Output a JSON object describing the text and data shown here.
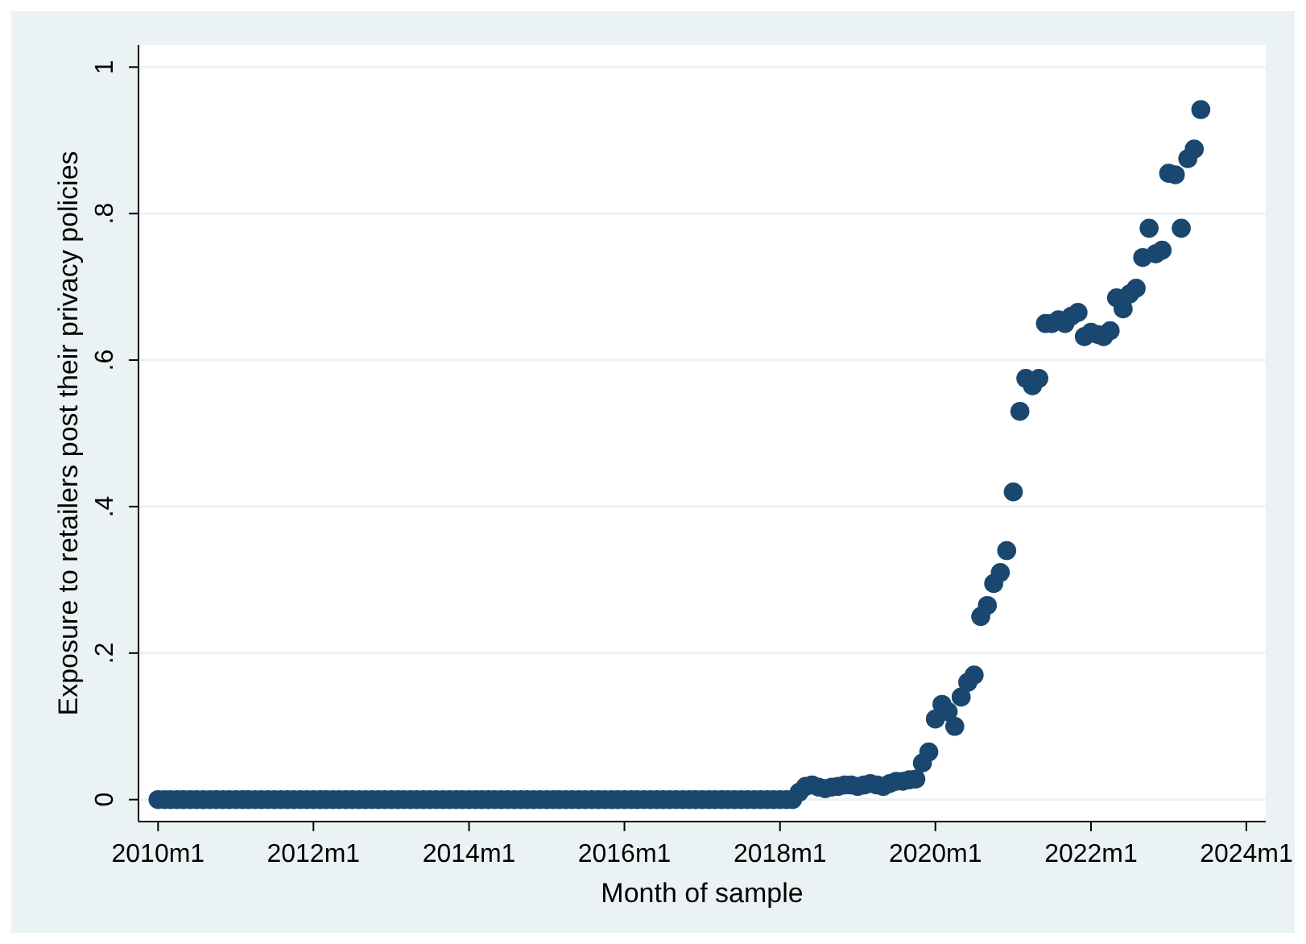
{
  "chart_data": {
    "type": "scatter",
    "xlabel": "Month of sample",
    "ylabel": "Exposure to retailers post their privacy policies",
    "x": [
      "2010-01",
      "2010-02",
      "2010-03",
      "2010-04",
      "2010-05",
      "2010-06",
      "2010-07",
      "2010-08",
      "2010-09",
      "2010-10",
      "2010-11",
      "2010-12",
      "2011-01",
      "2011-02",
      "2011-03",
      "2011-04",
      "2011-05",
      "2011-06",
      "2011-07",
      "2011-08",
      "2011-09",
      "2011-10",
      "2011-11",
      "2011-12",
      "2012-01",
      "2012-02",
      "2012-03",
      "2012-04",
      "2012-05",
      "2012-06",
      "2012-07",
      "2012-08",
      "2012-09",
      "2012-10",
      "2012-11",
      "2012-12",
      "2013-01",
      "2013-02",
      "2013-03",
      "2013-04",
      "2013-05",
      "2013-06",
      "2013-07",
      "2013-08",
      "2013-09",
      "2013-10",
      "2013-11",
      "2013-12",
      "2014-01",
      "2014-02",
      "2014-03",
      "2014-04",
      "2014-05",
      "2014-06",
      "2014-07",
      "2014-08",
      "2014-09",
      "2014-10",
      "2014-11",
      "2014-12",
      "2015-01",
      "2015-02",
      "2015-03",
      "2015-04",
      "2015-05",
      "2015-06",
      "2015-07",
      "2015-08",
      "2015-09",
      "2015-10",
      "2015-11",
      "2015-12",
      "2016-01",
      "2016-02",
      "2016-03",
      "2016-04",
      "2016-05",
      "2016-06",
      "2016-07",
      "2016-08",
      "2016-09",
      "2016-10",
      "2016-11",
      "2016-12",
      "2017-01",
      "2017-02",
      "2017-03",
      "2017-04",
      "2017-05",
      "2017-06",
      "2017-07",
      "2017-08",
      "2017-09",
      "2017-10",
      "2017-11",
      "2017-12",
      "2018-01",
      "2018-02",
      "2018-03",
      "2018-04",
      "2018-05",
      "2018-06",
      "2018-07",
      "2018-08",
      "2018-09",
      "2018-10",
      "2018-11",
      "2018-12",
      "2019-01",
      "2019-02",
      "2019-03",
      "2019-04",
      "2019-05",
      "2019-06",
      "2019-07",
      "2019-08",
      "2019-09",
      "2019-10",
      "2019-11",
      "2019-12",
      "2020-01",
      "2020-02",
      "2020-03",
      "2020-04",
      "2020-05",
      "2020-06",
      "2020-07",
      "2020-08",
      "2020-09",
      "2020-10",
      "2020-11",
      "2020-12",
      "2021-01",
      "2021-02",
      "2021-03",
      "2021-04",
      "2021-05",
      "2021-06",
      "2021-07",
      "2021-08",
      "2021-09",
      "2021-10",
      "2021-11",
      "2021-12",
      "2022-01",
      "2022-02",
      "2022-03",
      "2022-04",
      "2022-05",
      "2022-06",
      "2022-07",
      "2022-08",
      "2022-09",
      "2022-10",
      "2022-11",
      "2022-12",
      "2023-01",
      "2023-02",
      "2023-03",
      "2023-04",
      "2023-05",
      "2023-06"
    ],
    "series": [
      {
        "color": "#1a476f",
        "values": [
          0,
          0,
          0,
          0,
          0,
          0,
          0,
          0,
          0,
          0,
          0,
          0,
          0,
          0,
          0,
          0,
          0,
          0,
          0,
          0,
          0,
          0,
          0,
          0,
          0,
          0,
          0,
          0,
          0,
          0,
          0,
          0,
          0,
          0,
          0,
          0,
          0,
          0,
          0,
          0,
          0,
          0,
          0,
          0,
          0,
          0,
          0,
          0,
          0,
          0,
          0,
          0,
          0,
          0,
          0,
          0,
          0,
          0,
          0,
          0,
          0,
          0,
          0,
          0,
          0,
          0,
          0,
          0,
          0,
          0,
          0,
          0,
          0,
          0,
          0,
          0,
          0,
          0,
          0,
          0,
          0,
          0,
          0,
          0,
          0,
          0,
          0,
          0,
          0,
          0,
          0,
          0,
          0,
          0,
          0,
          0,
          0,
          0,
          0,
          0.01,
          0.018,
          0.02,
          0.017,
          0.015,
          0.017,
          0.018,
          0.02,
          0.02,
          0.018,
          0.02,
          0.022,
          0.02,
          0.018,
          0.022,
          0.025,
          0.025,
          0.027,
          0.028,
          0.05,
          0.065,
          0.11,
          0.13,
          0.12,
          0.1,
          0.14,
          0.16,
          0.17,
          0.25,
          0.265,
          0.295,
          0.31,
          0.34,
          0.42,
          0.53,
          0.575,
          0.565,
          0.575,
          0.65,
          0.65,
          0.655,
          0.65,
          0.66,
          0.665,
          0.632,
          0.638,
          0.635,
          0.632,
          0.64,
          0.685,
          0.67,
          0.69,
          0.698,
          0.74,
          0.78,
          0.745,
          0.75,
          0.855,
          0.853,
          0.78,
          0.875,
          0.888,
          0.942
        ]
      }
    ],
    "xlim": [
      "2009-10",
      "2024-04"
    ],
    "xticks": [
      {
        "value": "2010-01",
        "label": "2010m1"
      },
      {
        "value": "2012-01",
        "label": "2012m1"
      },
      {
        "value": "2014-01",
        "label": "2014m1"
      },
      {
        "value": "2016-01",
        "label": "2016m1"
      },
      {
        "value": "2018-01",
        "label": "2018m1"
      },
      {
        "value": "2020-01",
        "label": "2020m1"
      },
      {
        "value": "2022-01",
        "label": "2022m1"
      },
      {
        "value": "2024-01",
        "label": "2024m1"
      }
    ],
    "ylim": [
      -0.03,
      1.03
    ],
    "yticks": [
      0,
      {
        "value": 0.2,
        "label": ".2"
      },
      {
        "value": 0.4,
        "label": ".4"
      },
      {
        "value": 0.6,
        "label": ".6"
      },
      {
        "value": 0.8,
        "label": ".8"
      },
      1
    ],
    "grid": "y",
    "marker": "circle"
  }
}
